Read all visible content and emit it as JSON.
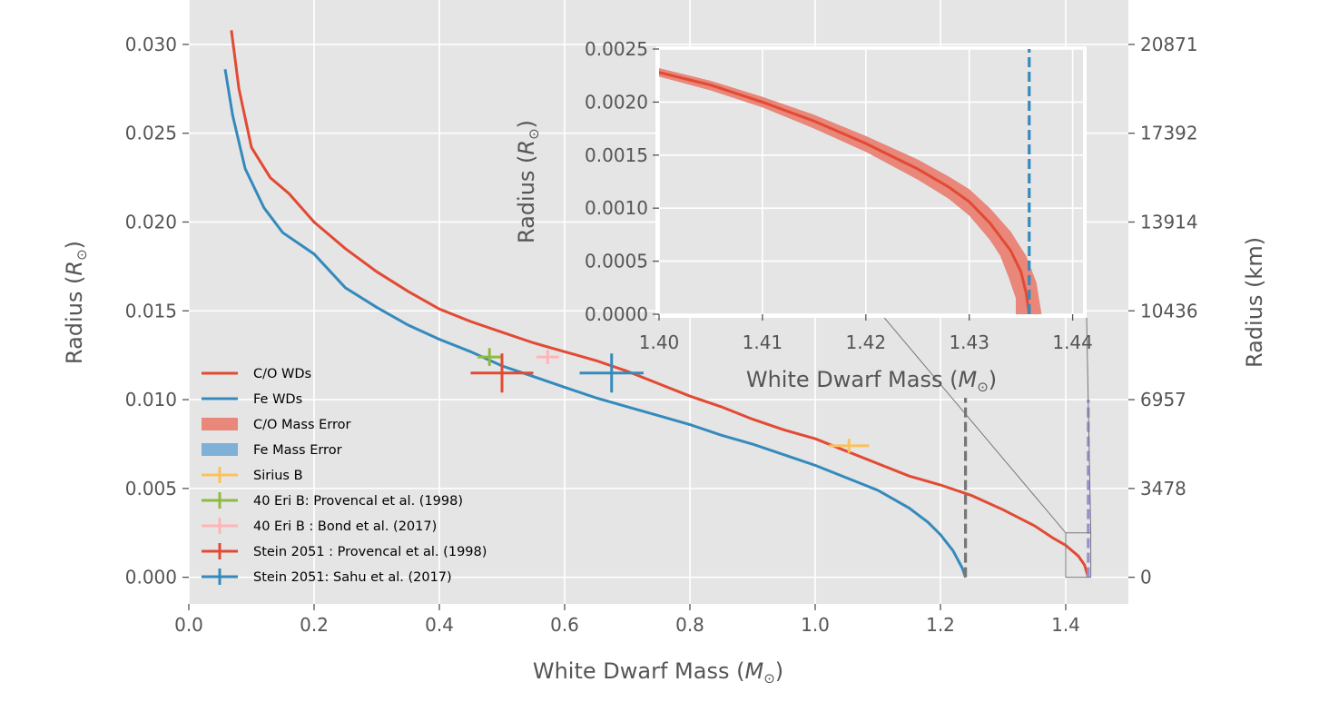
{
  "chart_data": [
    {
      "type": "line",
      "xlabel": "White Dwarf Mass",
      "xlabel_unit": "M",
      "ylabel": "Radius",
      "ylabel_unit": "R",
      "y2label": "Radius (km)",
      "xlim": [
        0.0,
        1.5
      ],
      "ylim": [
        -0.0015,
        0.0325
      ],
      "xticks": [
        "0.0",
        "0.2",
        "0.4",
        "0.6",
        "0.8",
        "1.0",
        "1.2",
        "1.4"
      ],
      "yticks": [
        "0.000",
        "0.005",
        "0.010",
        "0.015",
        "0.020",
        "0.025",
        "0.030"
      ],
      "y2ticks": [
        "0",
        "3478",
        "6957",
        "10436",
        "13914",
        "17392",
        "20871"
      ],
      "grid": true,
      "legend_position": "lower-left",
      "series": [
        {
          "name": "C/O WDs",
          "color": "#e24a33",
          "points": [
            [
              0.068,
              0.0308
            ],
            [
              0.08,
              0.0275
            ],
            [
              0.1,
              0.0242
            ],
            [
              0.13,
              0.0225
            ],
            [
              0.16,
              0.0216
            ],
            [
              0.2,
              0.02
            ],
            [
              0.25,
              0.0185
            ],
            [
              0.3,
              0.0172
            ],
            [
              0.35,
              0.0161
            ],
            [
              0.4,
              0.0151
            ],
            [
              0.45,
              0.0144
            ],
            [
              0.5,
              0.0138
            ],
            [
              0.55,
              0.0132
            ],
            [
              0.6,
              0.0127
            ],
            [
              0.65,
              0.0122
            ],
            [
              0.7,
              0.0116
            ],
            [
              0.75,
              0.0109
            ],
            [
              0.8,
              0.0102
            ],
            [
              0.85,
              0.0096
            ],
            [
              0.9,
              0.0089
            ],
            [
              0.95,
              0.0083
            ],
            [
              1.0,
              0.0078
            ],
            [
              1.05,
              0.0071
            ],
            [
              1.1,
              0.0064
            ],
            [
              1.15,
              0.0057
            ],
            [
              1.2,
              0.0052
            ],
            [
              1.25,
              0.0046
            ],
            [
              1.3,
              0.0038
            ],
            [
              1.35,
              0.0029
            ],
            [
              1.38,
              0.0022
            ],
            [
              1.4,
              0.0018
            ],
            [
              1.42,
              0.0012
            ],
            [
              1.43,
              0.0007
            ],
            [
              1.436,
              0.0
            ]
          ]
        },
        {
          "name": "Fe WDs",
          "color": "#348abd",
          "points": [
            [
              0.058,
              0.0286
            ],
            [
              0.07,
              0.026
            ],
            [
              0.09,
              0.023
            ],
            [
              0.12,
              0.0208
            ],
            [
              0.15,
              0.0194
            ],
            [
              0.2,
              0.0182
            ],
            [
              0.25,
              0.0163
            ],
            [
              0.3,
              0.0152
            ],
            [
              0.35,
              0.0142
            ],
            [
              0.4,
              0.0134
            ],
            [
              0.45,
              0.0127
            ],
            [
              0.5,
              0.0119
            ],
            [
              0.55,
              0.0113
            ],
            [
              0.6,
              0.0107
            ],
            [
              0.65,
              0.0101
            ],
            [
              0.7,
              0.0096
            ],
            [
              0.75,
              0.0091
            ],
            [
              0.8,
              0.0086
            ],
            [
              0.85,
              0.008
            ],
            [
              0.9,
              0.0075
            ],
            [
              0.95,
              0.0069
            ],
            [
              1.0,
              0.0063
            ],
            [
              1.05,
              0.0056
            ],
            [
              1.1,
              0.0049
            ],
            [
              1.15,
              0.0039
            ],
            [
              1.18,
              0.0031
            ],
            [
              1.2,
              0.0024
            ],
            [
              1.22,
              0.0015
            ],
            [
              1.235,
              0.0005
            ],
            [
              1.24,
              0.0
            ]
          ]
        }
      ],
      "reference_lines": [
        {
          "x": 1.24,
          "y_range": [
            0.0,
            0.0101
          ],
          "color": "#777777",
          "style": "dashed"
        },
        {
          "x": 1.436,
          "y_range": [
            0.0,
            0.01
          ],
          "color": "#988ed5",
          "style": "dashed"
        }
      ],
      "error_points": [
        {
          "name": "Sirius B",
          "color": "#fbc15e",
          "x": 1.054,
          "y": 0.0074,
          "xerr": 0.032,
          "yerr": 0.0004
        },
        {
          "name": "40 Eri B: Provencal et al. (1998)",
          "color": "#8eba42",
          "x": 0.48,
          "y": 0.0124,
          "xerr": 0.019,
          "yerr": 0.0005
        },
        {
          "name": "40 Eri B : Bond et al. (2017)",
          "color": "#ffb5b8",
          "x": 0.573,
          "y": 0.0124,
          "xerr": 0.018,
          "yerr": 0.0004
        },
        {
          "name": "Stein 2051 : Provencal et al. (1998)",
          "color": "#e24a33",
          "x": 0.5,
          "y": 0.0115,
          "xerr": 0.05,
          "yerr": 0.0011
        },
        {
          "name": "Stein 2051: Sahu et al. (2017)",
          "color": "#348abd",
          "x": 0.675,
          "y": 0.0115,
          "xerr": 0.051,
          "yerr": 0.0011
        }
      ],
      "zoom_box": {
        "x": [
          1.4,
          1.44
        ],
        "y": [
          0.0,
          0.0025
        ]
      },
      "legend": [
        {
          "label": "C/O WDs",
          "kind": "line",
          "color": "#e24a33"
        },
        {
          "label": "Fe WDs",
          "kind": "line",
          "color": "#348abd"
        },
        {
          "label": "C/O Mass Error",
          "kind": "patch",
          "color": "#e8877a"
        },
        {
          "label": "Fe Mass Error",
          "kind": "patch",
          "color": "#7fb0d6"
        },
        {
          "label": "Sirius B",
          "kind": "errorbar",
          "color": "#fbc15e"
        },
        {
          "label": "40 Eri B: Provencal et al. (1998)",
          "kind": "errorbar",
          "color": "#8eba42"
        },
        {
          "label": "40 Eri B : Bond et al. (2017)",
          "kind": "errorbar",
          "color": "#ffb5b8"
        },
        {
          "label": "Stein 2051 : Provencal et al. (1998)",
          "kind": "errorbar",
          "color": "#e24a33"
        },
        {
          "label": "Stein 2051: Sahu et al. (2017)",
          "kind": "errorbar",
          "color": "#348abd"
        }
      ]
    },
    {
      "type": "line",
      "xlabel": "White Dwarf Mass",
      "xlabel_unit": "M",
      "ylabel": "Radius",
      "ylabel_unit": "R",
      "xlim": [
        1.4,
        1.441
      ],
      "ylim": [
        0.0,
        0.0025
      ],
      "xticks": [
        "1.40",
        "1.41",
        "1.42",
        "1.43",
        "1.44"
      ],
      "yticks": [
        "0.0000",
        "0.0005",
        "0.0010",
        "0.0015",
        "0.0020",
        "0.0025"
      ],
      "grid": true,
      "series": [
        {
          "name": "C/O WDs",
          "color": "#e24a33",
          "points": [
            [
              1.4,
              0.00228
            ],
            [
              1.405,
              0.00216
            ],
            [
              1.41,
              0.002
            ],
            [
              1.415,
              0.00182
            ],
            [
              1.42,
              0.00161
            ],
            [
              1.425,
              0.00137
            ],
            [
              1.428,
              0.0012
            ],
            [
              1.43,
              0.00106
            ],
            [
              1.432,
              0.00086
            ],
            [
              1.434,
              0.0006
            ],
            [
              1.435,
              0.0004
            ],
            [
              1.4355,
              0.0002
            ],
            [
              1.4358,
              0.0
            ]
          ]
        }
      ],
      "error_band": {
        "name": "C/O Mass Error",
        "color": "#e8877a",
        "upper": [
          [
            1.4,
            0.00232
          ],
          [
            1.405,
            0.0022
          ],
          [
            1.41,
            0.00205
          ],
          [
            1.415,
            0.00188
          ],
          [
            1.42,
            0.00168
          ],
          [
            1.425,
            0.00146
          ],
          [
            1.428,
            0.0013
          ],
          [
            1.43,
            0.00118
          ],
          [
            1.432,
            0.001
          ],
          [
            1.434,
            0.00078
          ],
          [
            1.4355,
            0.00055
          ],
          [
            1.4365,
            0.0003
          ],
          [
            1.437,
            0.0
          ]
        ],
        "lower": [
          [
            1.4,
            0.00224
          ],
          [
            1.405,
            0.00211
          ],
          [
            1.41,
            0.00195
          ],
          [
            1.415,
            0.00175
          ],
          [
            1.42,
            0.00153
          ],
          [
            1.425,
            0.00127
          ],
          [
            1.428,
            0.00109
          ],
          [
            1.43,
            0.00093
          ],
          [
            1.432,
            0.0007
          ],
          [
            1.433,
            0.00055
          ],
          [
            1.4338,
            0.00035
          ],
          [
            1.4345,
            0.00015
          ],
          [
            1.4345,
            0.0
          ]
        ]
      },
      "reference_lines": [
        {
          "x": 1.4358,
          "y_range": [
            0.0,
            0.0025
          ],
          "color": "#348abd",
          "style": "dashed"
        }
      ]
    }
  ]
}
